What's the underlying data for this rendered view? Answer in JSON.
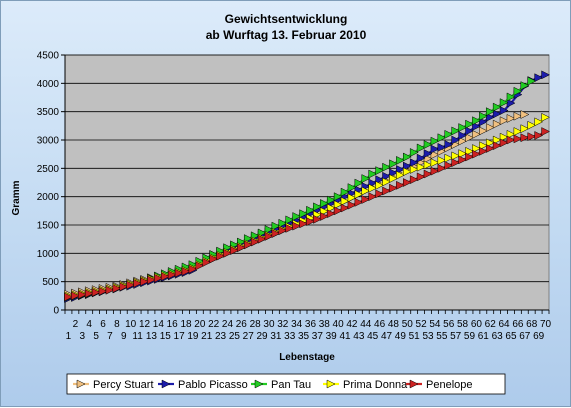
{
  "chart_data": {
    "type": "line",
    "title": "Gewichtsentwicklung",
    "subtitle": "ab Wurftag 13. Februar 2010",
    "xlabel": "Lebenstage",
    "ylabel": "Gramm",
    "ylim": [
      0,
      4500
    ],
    "yticks": [
      0,
      500,
      1000,
      1500,
      2000,
      2500,
      3000,
      3500,
      4000,
      4500
    ],
    "x_even_labels": [
      "2",
      "4",
      "6",
      "8",
      "10",
      "12",
      "14",
      "16",
      "18",
      "20",
      "22",
      "24",
      "26",
      "28",
      "30",
      "32",
      "34",
      "36",
      "38",
      "40",
      "42",
      "44",
      "46",
      "48",
      "50",
      "52",
      "54",
      "56",
      "58",
      "60",
      "62",
      "64",
      "66",
      "68",
      "70"
    ],
    "x_odd_labels": [
      "1",
      "3",
      "5",
      "7",
      "9",
      "11",
      "13",
      "15",
      "17",
      "19",
      "21",
      "23",
      "25",
      "27",
      "29",
      "31",
      "33",
      "35",
      "37",
      "39",
      "41",
      "43",
      "45",
      "47",
      "49",
      "51",
      "53",
      "55",
      "57",
      "59",
      "61",
      "63",
      "65",
      "67",
      "69"
    ],
    "x_count": 70,
    "grid": true,
    "legend_position": "bottom",
    "plot_background": "#c0c0c0",
    "series": [
      {
        "name": "Percy Stuart",
        "color": "#f0c080",
        "values": [
          280,
          300,
          320,
          340,
          360,
          380,
          400,
          420,
          450,
          480,
          510,
          540,
          570,
          600,
          630,
          660,
          690,
          720,
          750,
          800,
          850,
          900,
          950,
          1000,
          1050,
          1100,
          1150,
          1200,
          1250,
          1300,
          1350,
          1400,
          1450,
          1500,
          1560,
          1620,
          1680,
          1740,
          1800,
          1860,
          1920,
          1980,
          2040,
          2100,
          2160,
          2220,
          2280,
          2340,
          2400,
          2460,
          2530,
          2600,
          2670,
          2740,
          2800,
          2860,
          2920,
          2980,
          3040,
          3100,
          3160,
          3220,
          3280,
          3340,
          3380,
          3420,
          3450,
          null,
          null,
          null
        ]
      },
      {
        "name": "Pablo Picasso",
        "color": "#1c1caa",
        "values": [
          200,
          220,
          250,
          270,
          300,
          320,
          350,
          370,
          400,
          420,
          450,
          480,
          510,
          540,
          570,
          600,
          630,
          660,
          700,
          850,
          920,
          980,
          1030,
          1080,
          1130,
          1180,
          1230,
          1280,
          1330,
          1380,
          1430,
          1480,
          1530,
          1580,
          1640,
          1700,
          1760,
          1820,
          1880,
          1940,
          2000,
          2060,
          2120,
          2180,
          2240,
          2300,
          2360,
          2420,
          2480,
          2540,
          2600,
          2680,
          2760,
          2840,
          2870,
          2920,
          3000,
          3080,
          3160,
          3240,
          3320,
          3400,
          3460,
          3520,
          3650,
          3800,
          3950,
          4050,
          4100,
          4150
        ]
      },
      {
        "name": "Pan Tau",
        "color": "#22cc22",
        "values": [
          220,
          240,
          260,
          280,
          310,
          340,
          370,
          400,
          430,
          460,
          490,
          520,
          560,
          600,
          640,
          680,
          720,
          760,
          800,
          860,
          920,
          980,
          1040,
          1100,
          1150,
          1200,
          1260,
          1310,
          1360,
          1420,
          1480,
          1530,
          1590,
          1650,
          1700,
          1760,
          1820,
          1880,
          1940,
          2000,
          2080,
          2160,
          2240,
          2320,
          2400,
          2460,
          2520,
          2580,
          2640,
          2700,
          2780,
          2860,
          2920,
          2980,
          3040,
          3100,
          3160,
          3220,
          3280,
          3340,
          3420,
          3500,
          3580,
          3660,
          3760,
          3860,
          3960,
          4040,
          null,
          null
        ]
      },
      {
        "name": "Prima Donna",
        "color": "#ffff00",
        "values": [
          250,
          270,
          290,
          310,
          330,
          350,
          370,
          400,
          430,
          460,
          490,
          520,
          550,
          580,
          610,
          640,
          670,
          700,
          740,
          800,
          860,
          920,
          970,
          1020,
          1070,
          1120,
          1170,
          1220,
          1270,
          1320,
          1370,
          1420,
          1470,
          1520,
          1570,
          1620,
          1680,
          1740,
          1800,
          1860,
          1920,
          1980,
          2040,
          2100,
          2150,
          2200,
          2260,
          2320,
          2380,
          2440,
          2480,
          2520,
          2560,
          2600,
          2640,
          2680,
          2720,
          2760,
          2800,
          2850,
          2900,
          2950,
          3000,
          3050,
          3100,
          3150,
          3200,
          3260,
          3320,
          3400
        ]
      },
      {
        "name": "Penelope",
        "color": "#cc2222",
        "values": [
          230,
          250,
          270,
          290,
          310,
          330,
          350,
          380,
          410,
          440,
          470,
          500,
          530,
          560,
          590,
          620,
          650,
          680,
          720,
          780,
          840,
          900,
          950,
          1000,
          1050,
          1100,
          1150,
          1200,
          1250,
          1300,
          1350,
          1400,
          1440,
          1480,
          1520,
          1560,
          1600,
          1650,
          1700,
          1750,
          1800,
          1850,
          1900,
          1950,
          2000,
          2050,
          2100,
          2150,
          2200,
          2250,
          2300,
          2350,
          2400,
          2450,
          2500,
          2550,
          2600,
          2650,
          2700,
          2750,
          2800,
          2850,
          2900,
          2950,
          3000,
          3020,
          3040,
          3060,
          3080,
          3150
        ]
      }
    ]
  }
}
